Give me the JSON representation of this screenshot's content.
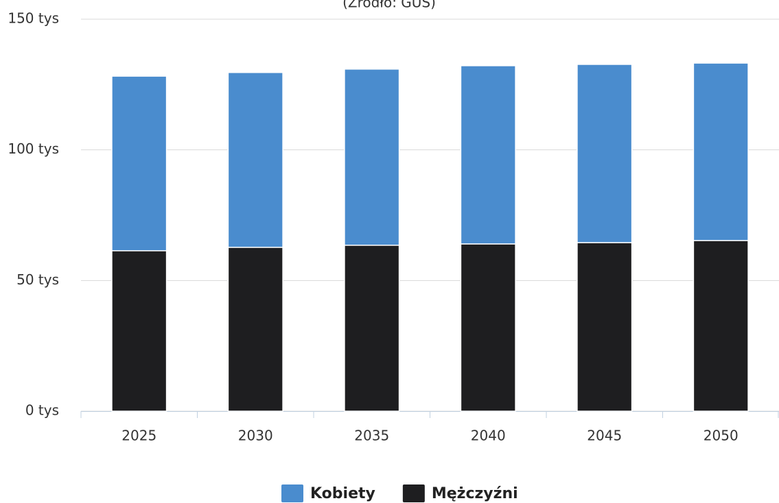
{
  "chart_data": {
    "type": "bar",
    "stacked": true,
    "subtitle": "(Źródło: GUS)",
    "categories": [
      "2025",
      "2030",
      "2035",
      "2040",
      "2045",
      "2050"
    ],
    "series": [
      {
        "name": "Mężczyźni",
        "color": "#1e1e20",
        "values": [
          61.4,
          62.7,
          63.5,
          64.0,
          64.5,
          65.3
        ]
      },
      {
        "name": "Kobiety",
        "color": "#4a8cce",
        "values": [
          66.8,
          66.9,
          67.4,
          68.2,
          68.2,
          67.9
        ]
      }
    ],
    "legend_order": [
      "Kobiety",
      "Mężczyźni"
    ],
    "ylim": [
      0,
      150
    ],
    "yticks": [
      {
        "value": 0,
        "label": "0 tys"
      },
      {
        "value": 50,
        "label": "50 tys"
      },
      {
        "value": 100,
        "label": "100 tys"
      },
      {
        "value": 150,
        "label": "150 tys"
      }
    ],
    "grid": true,
    "legend": "bottom"
  }
}
